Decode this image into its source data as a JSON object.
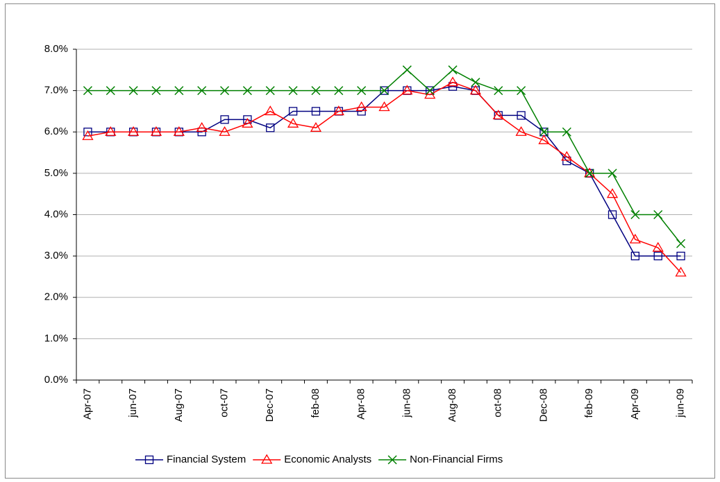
{
  "chart_data": {
    "type": "line",
    "categories": [
      "Apr-07",
      null,
      "jun-07",
      null,
      "Aug-07",
      null,
      "oct-07",
      null,
      "Dec-07",
      null,
      "feb-08",
      null,
      "Apr-08",
      null,
      "jun-08",
      null,
      "Aug-08",
      null,
      "oct-08",
      null,
      "Dec-08",
      null,
      "feb-09",
      null,
      "Apr-09",
      null,
      "jun-09"
    ],
    "series": [
      {
        "name": "Financial System",
        "color": "#000080",
        "marker": "square",
        "values": [
          6.0,
          6.0,
          6.0,
          6.0,
          6.0,
          6.0,
          6.3,
          6.3,
          6.1,
          6.5,
          6.5,
          6.5,
          6.5,
          7.0,
          7.0,
          7.0,
          7.1,
          7.0,
          6.4,
          6.4,
          6.0,
          5.3,
          5.0,
          4.0,
          3.0,
          3.0,
          3.0
        ]
      },
      {
        "name": "Economic Analysts",
        "color": "#ff0000",
        "marker": "triangle",
        "values": [
          5.9,
          6.0,
          6.0,
          6.0,
          6.0,
          6.1,
          6.0,
          6.2,
          6.5,
          6.2,
          6.1,
          6.5,
          6.6,
          6.6,
          7.0,
          6.9,
          7.2,
          7.0,
          6.4,
          6.0,
          5.8,
          5.4,
          5.0,
          4.5,
          3.4,
          3.2,
          2.6
        ]
      },
      {
        "name": "Non-Financial Firms",
        "color": "#008000",
        "marker": "x",
        "values": [
          7.0,
          7.0,
          7.0,
          7.0,
          7.0,
          7.0,
          7.0,
          7.0,
          7.0,
          7.0,
          7.0,
          7.0,
          7.0,
          7.0,
          7.5,
          7.0,
          7.5,
          7.2,
          7.0,
          7.0,
          6.0,
          6.0,
          5.0,
          5.0,
          4.0,
          4.0,
          3.3
        ]
      }
    ],
    "ylim": [
      0,
      8
    ],
    "yticks": [
      {
        "value": 0,
        "label": "0.0%"
      },
      {
        "value": 1,
        "label": "1.0%"
      },
      {
        "value": 2,
        "label": "2.0%"
      },
      {
        "value": 3,
        "label": "3.0%"
      },
      {
        "value": 4,
        "label": "4.0%"
      },
      {
        "value": 5,
        "label": "5.0%"
      },
      {
        "value": 6,
        "label": "6.0%"
      },
      {
        "value": 7,
        "label": "7.0%"
      },
      {
        "value": 8,
        "label": "8.0%"
      }
    ],
    "grid": true,
    "legend": "bottom"
  }
}
